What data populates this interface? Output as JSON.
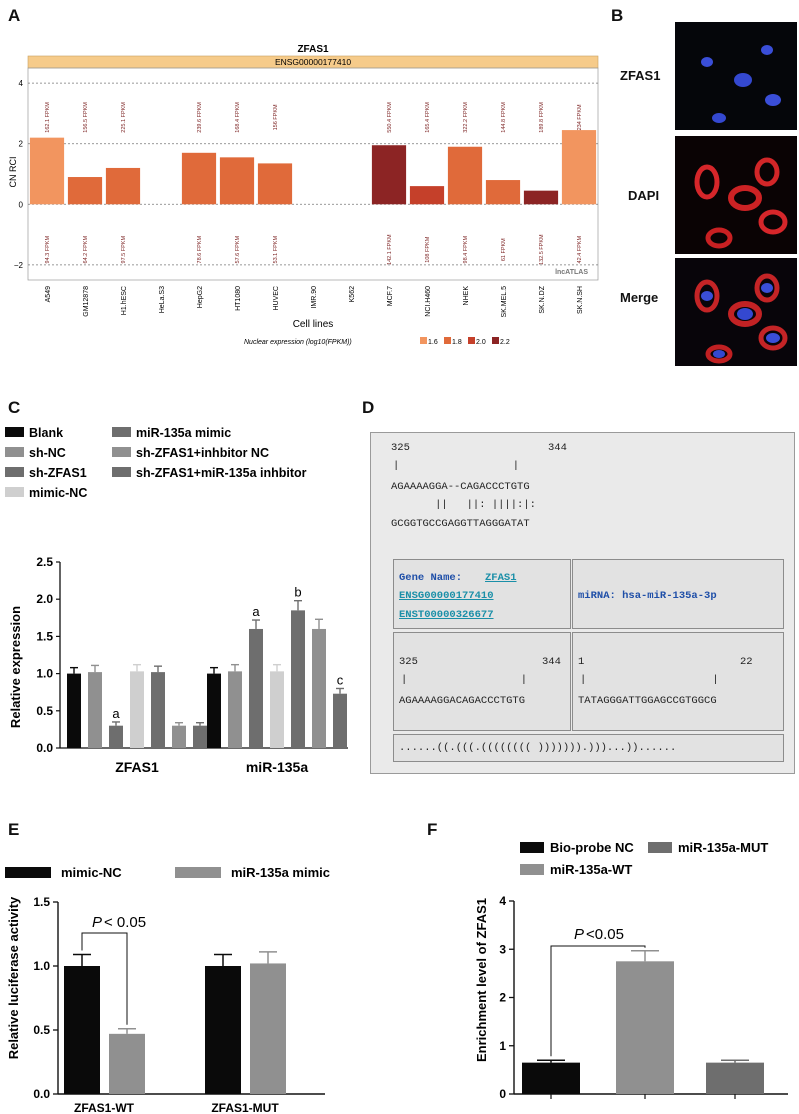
{
  "panels": {
    "a": "A",
    "b": "B",
    "c": "C",
    "d": "D",
    "e": "E",
    "f": "F"
  },
  "colors": {
    "black": "#0a0a0a",
    "dgray": "#6e6e6e",
    "mgray": "#909090",
    "lgray": "#cfcfcf",
    "c16": "#f2955f",
    "c18": "#e06a3a",
    "c20": "#c5402a",
    "c22": "#8c2424",
    "band": "#f6cb8a"
  },
  "chart_a": {
    "type": "bar",
    "title": "ZFAS1",
    "subtitle": "ENSG00000177410",
    "ylabel": "CN RCI",
    "xlabel": "Cell lines",
    "watermark": "lncATLAS",
    "ylim": [
      -2.5,
      4.5
    ],
    "yticks": [
      "4",
      "2",
      "0",
      "−2"
    ],
    "categories": [
      "A549",
      "GM12878",
      "H1.hESC",
      "HeLa.S3",
      "HepG2",
      "HT1080",
      "HUVEC",
      "IMR.90",
      "K562",
      "MCF.7",
      "NCI.H460",
      "NHEK",
      "SK.MEL.5",
      "SK.N.DZ",
      "SK.N.SH"
    ],
    "values": [
      2.2,
      0.9,
      1.2,
      null,
      1.7,
      1.55,
      1.35,
      null,
      null,
      1.95,
      0.6,
      1.9,
      0.8,
      0.45,
      2.45
    ],
    "color_level": [
      1.6,
      1.8,
      1.8,
      null,
      1.8,
      1.8,
      1.8,
      null,
      null,
      2.2,
      2.0,
      1.8,
      1.8,
      2.2,
      1.6
    ],
    "top_labels": [
      "162.1 FPKM",
      "156.5 FPKM",
      "225.1 FPKM",
      "",
      "239.6 FPKM",
      "168.4 FPKM",
      "156 FPKM",
      "",
      "",
      "550.4 FPKM",
      "165.4 FPKM",
      "322.2 FPKM",
      "144.8 FPKM",
      "189.8 FPKM",
      "234 FPKM"
    ],
    "bottom_labels": [
      "94.3 FPKM",
      "64.2 FPKM",
      "97.5 FPKM",
      "",
      "78.6 FPKM",
      "57.6 FPKM",
      "53.1 FPKM",
      "",
      "",
      "142.1 FPKM",
      "108 FPKM",
      "98.4 FPKM",
      "61 FPKM",
      "132.5 FPKM",
      "42.4 FPKM"
    ],
    "legend_title": "Nuclear expression (log10(FPKM))",
    "legend": [
      "1.6",
      "1.8",
      "2.0",
      "2.2"
    ]
  },
  "panel_b": {
    "labels": [
      "ZFAS1",
      "DAPI",
      "Merge"
    ]
  },
  "chart_c": {
    "type": "bar",
    "ylabel": "Relative expression",
    "ylim": [
      0,
      2.5
    ],
    "yticks": [
      "0.0",
      "0.5",
      "1.0",
      "1.5",
      "2.0",
      "2.5"
    ],
    "groups": [
      "ZFAS1",
      "miR-135a"
    ],
    "legend": [
      "Blank",
      "sh-NC",
      "sh-ZFAS1",
      "mimic-NC",
      "miR-135a mimic",
      "sh-ZFAS1+inhbitor NC",
      "sh-ZFAS1+miR-135a inhbitor"
    ],
    "series_colors": [
      "#0a0a0a",
      "#909090",
      "#6e6e6e",
      "#cfcfcf",
      "#6e6e6e",
      "#909090",
      "#6e6e6e"
    ],
    "values": [
      [
        1.0,
        1.02,
        0.3,
        1.03,
        1.02,
        0.3,
        0.3
      ],
      [
        1.0,
        1.03,
        1.6,
        1.03,
        1.85,
        1.6,
        0.73
      ]
    ],
    "errors": [
      [
        0.08,
        0.09,
        0.05,
        0.09,
        0.08,
        0.04,
        0.04
      ],
      [
        0.08,
        0.09,
        0.12,
        0.09,
        0.13,
        0.13,
        0.07
      ]
    ],
    "annotations": [
      {
        "group": 0,
        "series": 2,
        "text": "a"
      },
      {
        "group": 1,
        "series": 2,
        "text": "a"
      },
      {
        "group": 1,
        "series": 4,
        "text": "b"
      },
      {
        "group": 1,
        "series": 6,
        "text": "c"
      }
    ]
  },
  "panel_d": {
    "top_pos": [
      "325",
      "344"
    ],
    "top_bar": "|                  |",
    "top_seq1": "AGAAAAGGA--CAGACCCTGTG",
    "top_match": "       ||   ||: ||||:|:",
    "top_seq2": "GCGGTGCCGAGGTTAGGGATAT",
    "gene_label": "Gene Name:",
    "gene_name": "ZFAS1",
    "gene_ids": [
      "ENSG00000177410",
      "ENST00000326677"
    ],
    "mirna": "miRNA: hsa-miR-135a-3p",
    "left_pos": [
      "325",
      "344"
    ],
    "left_bar": "|                  |",
    "left_seq": "AGAAAAGGACAGACCCTGTG",
    "right_pos": [
      "1",
      "22"
    ],
    "right_bar": "|                    |",
    "right_seq": "TATAGGGATTGGAGCCGTGGCG",
    "structure": "......((.(((.(((((((( ))))))).)))...))......"
  },
  "chart_e": {
    "type": "bar",
    "ylabel": "Relative luciferase activity",
    "ylim": [
      0,
      1.5
    ],
    "yticks": [
      "0.0",
      "0.5",
      "1.0",
      "1.5"
    ],
    "groups": [
      "ZFAS1-WT",
      "ZFAS1-MUT"
    ],
    "legend": [
      "mimic-NC",
      "miR-135a mimic"
    ],
    "series_colors": [
      "#0a0a0a",
      "#909090"
    ],
    "values": [
      [
        1.0,
        0.47
      ],
      [
        1.0,
        1.02
      ]
    ],
    "errors": [
      [
        0.09,
        0.04
      ],
      [
        0.09,
        0.09
      ]
    ],
    "pvalue_label": "P",
    "pvalue_text": "< 0.05"
  },
  "chart_f": {
    "type": "bar",
    "ylabel": "Enrichment level of ZFAS1",
    "ylim": [
      0,
      4
    ],
    "yticks": [
      "0",
      "1",
      "2",
      "3",
      "4"
    ],
    "categories": [
      "Bio-probe NC",
      "miR-135a-WT",
      "miR-135a-MUT"
    ],
    "legend": [
      "Bio-probe NC",
      "miR-135a-MUT",
      "miR-135a-WT"
    ],
    "series_colors": [
      "#0a0a0a",
      "#909090",
      "#6e6e6e"
    ],
    "values": [
      0.65,
      2.75,
      0.65
    ],
    "errors": [
      0.05,
      0.22,
      0.05
    ],
    "pvalue_label": "P",
    "pvalue_text": "<0.05"
  }
}
